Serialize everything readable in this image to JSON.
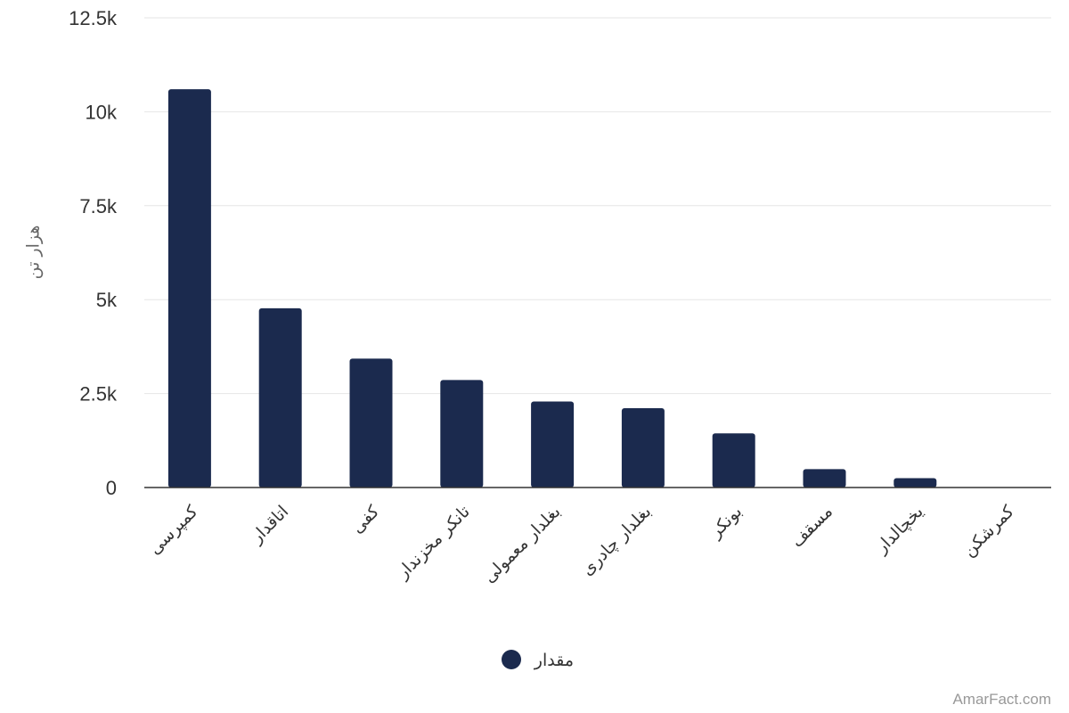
{
  "chart_data": {
    "type": "bar",
    "categories": [
      "کمپرسی",
      "اتاقدار",
      "کفی",
      "تانکر مخزندار",
      "بغلدار معمولی",
      "بغلدار چادری",
      "بونکر",
      "مسقف",
      "یخچالدار",
      "کمرشکن"
    ],
    "series": [
      {
        "name": "مقدار",
        "values": [
          10600,
          4770,
          3430,
          2860,
          2290,
          2110,
          1440,
          490,
          250,
          0
        ],
        "color": "#1b2a4e"
      }
    ],
    "ylabel": "هزار تن",
    "ylim": [
      0,
      12500
    ],
    "yticks": [
      0,
      2500,
      5000,
      7500,
      10000,
      12500
    ],
    "ytick_labels": [
      "0",
      "2.5k",
      "5k",
      "7.5k",
      "10k",
      "12.5k"
    ],
    "grid": true,
    "legend_position": "bottom-center"
  },
  "credit": "AmarFact.com"
}
